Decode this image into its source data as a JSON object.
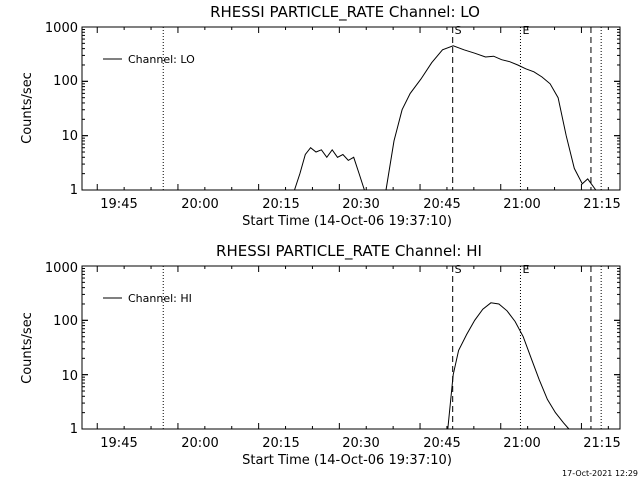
{
  "footer": {
    "timestamp": "17-Oct-2021 12:29"
  },
  "chart_data": [
    {
      "type": "line",
      "title": "RHESSI PARTICLE_RATE Channel: LO",
      "xlabel": "Start Time (14-Oct-06 19:37:10)",
      "ylabel": "Counts/sec",
      "x_unit": "minutes after 19:37:10",
      "xlim": [
        0,
        100
      ],
      "ylim": [
        1,
        1000
      ],
      "yscale": "log",
      "grid": false,
      "legend_position": "upper-left",
      "x_ticks": [
        "19:45",
        "20:00",
        "20:15",
        "20:30",
        "20:45",
        "21:00",
        "21:15"
      ],
      "y_ticks": [
        "1",
        "10",
        "100",
        "1000"
      ],
      "series": [
        {
          "name": "Channel: LO",
          "x": [
            39.5,
            40.5,
            41.5,
            42.5,
            43.5,
            44.5,
            45.5,
            46.5,
            47.5,
            48.5,
            49.5,
            50.5,
            51.5,
            52.5,
            53.5,
            54.5,
            55.5,
            56.5,
            58,
            59.5,
            61,
            63,
            65,
            67,
            69,
            71,
            73,
            75,
            76.5,
            78,
            79.5,
            81,
            82.5,
            84,
            85.5,
            87,
            88.5,
            90,
            91.5,
            93,
            94,
            95.5
          ],
          "y": [
            1,
            2,
            4.5,
            6,
            5,
            5.5,
            4,
            5.5,
            4,
            4.5,
            3.5,
            4,
            2,
            1,
            null,
            null,
            null,
            1,
            8,
            30,
            60,
            110,
            220,
            380,
            450,
            380,
            330,
            280,
            290,
            250,
            230,
            200,
            170,
            150,
            120,
            90,
            50,
            10,
            2.5,
            1.3,
            1.6,
            1
          ]
        }
      ],
      "markers": [
        {
          "label": "",
          "x": 15.1,
          "style": "dotted"
        },
        {
          "label": "S",
          "x": 68.9,
          "style": "dashed"
        },
        {
          "label": "E",
          "x": 81.5,
          "style": "dotted"
        },
        {
          "label": "",
          "x": 94.6,
          "style": "dashed"
        },
        {
          "label": "",
          "x": 96.5,
          "style": "dotted"
        }
      ]
    },
    {
      "type": "line",
      "title": "RHESSI PARTICLE_RATE Channel: HI",
      "xlabel": "Start Time (14-Oct-06 19:37:10)",
      "ylabel": "Counts/sec",
      "x_unit": "minutes after 19:37:10",
      "xlim": [
        0,
        100
      ],
      "ylim": [
        1,
        1000
      ],
      "yscale": "log",
      "grid": false,
      "legend_position": "upper-left",
      "x_ticks": [
        "19:45",
        "20:00",
        "20:15",
        "20:30",
        "20:45",
        "21:00",
        "21:15"
      ],
      "y_ticks": [
        "1",
        "10",
        "100",
        "1000"
      ],
      "series": [
        {
          "name": "Channel: HI",
          "x": [
            68,
            69,
            70,
            71.5,
            73,
            74.5,
            76,
            77.5,
            79,
            80.5,
            82,
            83.5,
            85,
            86.5,
            88,
            89.5,
            90.5
          ],
          "y": [
            1,
            10,
            28,
            55,
            100,
            160,
            210,
            200,
            150,
            95,
            50,
            20,
            8,
            3.5,
            2,
            1.3,
            1
          ]
        }
      ],
      "markers": [
        {
          "label": "",
          "x": 15.1,
          "style": "dotted"
        },
        {
          "label": "S",
          "x": 68.9,
          "style": "dashed"
        },
        {
          "label": "E",
          "x": 81.5,
          "style": "dotted"
        },
        {
          "label": "",
          "x": 94.6,
          "style": "dashed"
        },
        {
          "label": "",
          "x": 96.5,
          "style": "dotted"
        }
      ]
    }
  ]
}
